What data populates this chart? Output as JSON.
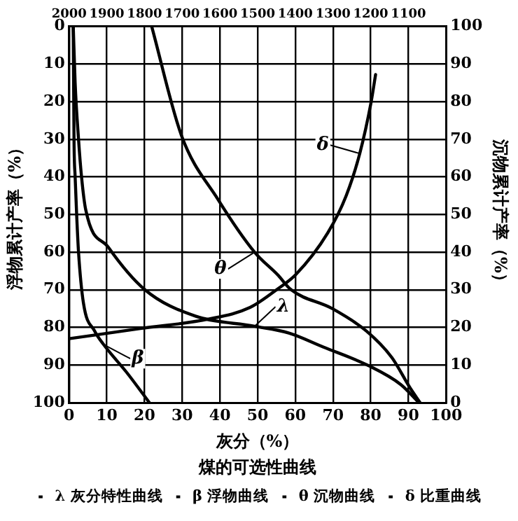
{
  "chart_data": {
    "type": "line",
    "title": "煤的可选性曲线",
    "xlabel": "灰分（%）",
    "ylabel": "浮物累计产率（%）",
    "y2label": "沉物累计产率（%）",
    "annotations": [
      {
        "text": "λ",
        "x": 49.2,
        "y": 79.7
      },
      {
        "text": "β",
        "x": 9.2,
        "y": 84.6
      },
      {
        "text": "θ",
        "x": 49.2,
        "y": 60
      },
      {
        "text": "δ",
        "x": 77.1,
        "y": 33.8
      }
    ],
    "xlim": [
      0,
      100
    ],
    "xticks": [
      0,
      10,
      20,
      30,
      40,
      50,
      60,
      70,
      80,
      90,
      100
    ],
    "x2lim": [
      2000,
      1000
    ],
    "x2ticks": [
      2000,
      1900,
      1800,
      1700,
      1600,
      1500,
      1400,
      1300,
      1200,
      1100
    ],
    "ylim": [
      100,
      0
    ],
    "yticks": [
      0,
      10,
      20,
      30,
      40,
      50,
      60,
      70,
      80,
      90,
      100
    ],
    "y2lim": [
      0,
      100
    ],
    "y2ticks": [
      0,
      10,
      20,
      30,
      40,
      50,
      60,
      70,
      80,
      90,
      100
    ],
    "grid": true,
    "legend": "bottom",
    "marker": "none",
    "line_style": "solid",
    "series": [
      {
        "name": "λ 灰分特性曲线",
        "color": "#000000",
        "x": [
          1.1,
          1.6,
          2.5,
          3.3,
          4.4,
          10.4,
          20.1,
          33.5,
          49.2,
          58.3,
          67.4,
          79.5,
          88,
          92.8
        ],
        "values": [
          0,
          15,
          30,
          40,
          48.7,
          58.7,
          70,
          77,
          79.7,
          81.5,
          85.2,
          90.2,
          95.2,
          100
        ]
      },
      {
        "name": "β 浮物曲线",
        "color": "#000000",
        "x": [
          1.1,
          1.3,
          1.6,
          2,
          2.5,
          3.8,
          6.8,
          9.2,
          15.3,
          21.3
        ],
        "values": [
          0,
          30,
          40,
          50,
          60,
          73.5,
          81,
          84.6,
          92,
          100
        ]
      },
      {
        "name": "θ 沉物曲线",
        "color": "#000000",
        "axis": "y2",
        "x": [
          21.9,
          29.8,
          39.5,
          49.2,
          55.3,
          58.9,
          69.8,
          78.9,
          85.6,
          90.4,
          93.1
        ],
        "values": [
          100,
          71,
          54,
          40,
          34,
          30,
          25,
          19,
          12,
          4,
          0
        ]
      },
      {
        "name": "δ 比重曲线",
        "color": "#000000",
        "axis": "x2",
        "x": [
          2000,
          1811,
          1630,
          1520,
          1447,
          1399,
          1314,
          1265,
          1229,
          1199,
          1187
        ],
        "values": [
          83,
          80.3,
          77.8,
          74.7,
          69.8,
          66,
          54.9,
          45,
          33.8,
          20.2,
          12.8
        ]
      }
    ]
  }
}
